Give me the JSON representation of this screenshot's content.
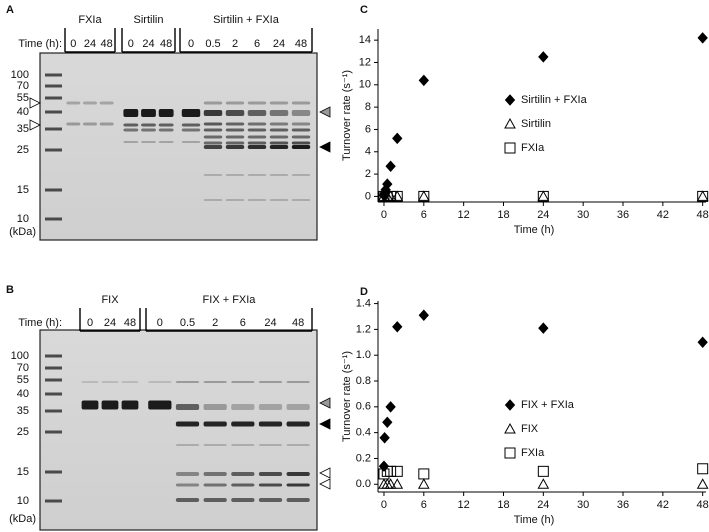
{
  "panel_labels": [
    "A",
    "B",
    "C",
    "D"
  ],
  "gels": [
    {
      "time_label": "Time (h):",
      "groups": [
        {
          "label": "FXIa",
          "lanes": [
            "0",
            "24",
            "48"
          ]
        },
        {
          "label": "Sirtilin",
          "lanes": [
            "0",
            "24",
            "48"
          ]
        },
        {
          "label": "Sirtilin + FXIa",
          "lanes": [
            "0",
            "0.5",
            "2",
            "6",
            "24",
            "48"
          ]
        }
      ],
      "markers": [
        "100",
        "70",
        "55",
        "40",
        "35",
        "25",
        "15",
        "10"
      ],
      "unit": "(kDa)"
    },
    {
      "time_label": "Time (h):",
      "groups": [
        {
          "label": "FIX",
          "lanes": [
            "0",
            "24",
            "48"
          ]
        },
        {
          "label": "FIX + FXIa",
          "lanes": [
            "0",
            "0.5",
            "2",
            "6",
            "24",
            "48"
          ]
        }
      ],
      "markers": [
        "100",
        "70",
        "55",
        "40",
        "35",
        "25",
        "15",
        "10"
      ],
      "unit": "(kDa)"
    }
  ],
  "chart_data": [
    {
      "type": "scatter",
      "x_label": "Time (h)",
      "y_label": "Turnover rate (s⁻¹)",
      "xlim": [
        -0.9,
        48.5
      ],
      "xticks": [
        0,
        6,
        12,
        18,
        24,
        30,
        36,
        42,
        48
      ],
      "ylim": [
        -0.5,
        15
      ],
      "yticks": [
        0,
        2,
        4,
        6,
        8,
        10,
        12,
        14
      ],
      "series": [
        {
          "name": "Sirtilin + FXIa",
          "marker": "diamond",
          "color": "#000000",
          "x": [
            0,
            0.1,
            0.25,
            0.5,
            1,
            2,
            6,
            24,
            48
          ],
          "values": [
            0.1,
            0.3,
            0.6,
            1.1,
            2.7,
            5.2,
            10.4,
            12.5,
            14.2
          ]
        },
        {
          "name": "Sirtilin",
          "marker": "triangle",
          "color": "#000000",
          "x": [
            0,
            0.5,
            1,
            2,
            6,
            24,
            48
          ],
          "values": [
            0,
            0,
            0,
            0,
            0,
            0,
            0
          ]
        },
        {
          "name": "FXIa",
          "marker": "square",
          "color": "#000000",
          "x": [
            0,
            1,
            2,
            6,
            24,
            48
          ],
          "values": [
            0,
            0,
            0,
            0,
            0,
            0
          ]
        }
      ]
    },
    {
      "type": "scatter",
      "x_label": "Time (h)",
      "y_label": "Turnover rate (s⁻¹)",
      "xlim": [
        -0.9,
        48.5
      ],
      "xticks": [
        0,
        6,
        12,
        18,
        24,
        30,
        36,
        42,
        48
      ],
      "ylim": [
        -0.06,
        1.42
      ],
      "yticks": [
        {
          "value": 0,
          "label": "0.0"
        },
        0.2,
        0.4,
        0.6,
        0.8,
        {
          "value": 1,
          "label": "1.0"
        },
        1.2,
        1.4
      ],
      "series": [
        {
          "name": "FIX + FXIa",
          "marker": "diamond",
          "color": "#000000",
          "x": [
            0,
            0.1,
            0.5,
            1,
            2,
            6,
            24,
            48
          ],
          "values": [
            0.14,
            0.36,
            0.48,
            0.6,
            1.22,
            1.31,
            1.21,
            1.1
          ]
        },
        {
          "name": "FIX",
          "marker": "triangle",
          "color": "#000000",
          "x": [
            0,
            0.5,
            1,
            2,
            6,
            24,
            48
          ],
          "values": [
            0,
            0,
            0,
            0,
            0,
            0,
            0
          ]
        },
        {
          "name": "FXIa",
          "marker": "square",
          "color": "#000000",
          "x": [
            0,
            0.5,
            1,
            2,
            6,
            24,
            48
          ],
          "values": [
            0.08,
            0.1,
            0.1,
            0.1,
            0.08,
            0.1,
            0.12
          ]
        }
      ]
    }
  ]
}
